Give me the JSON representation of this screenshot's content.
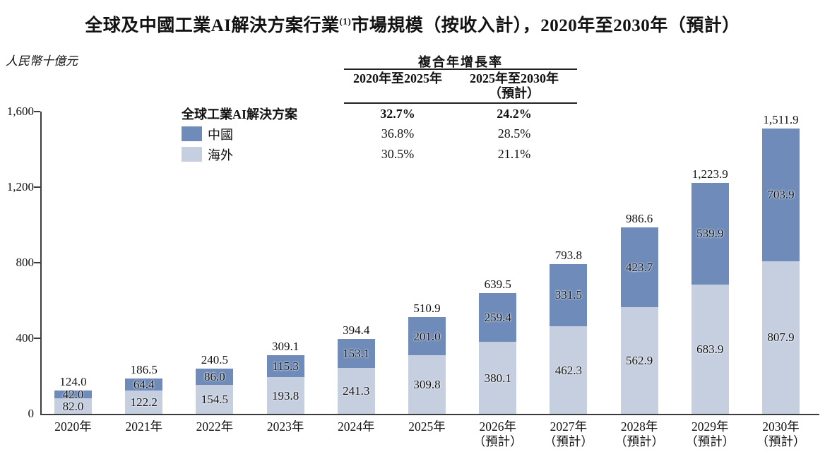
{
  "title": {
    "before_sup": "全球及中國工業AI解決方案行業",
    "sup": "(1)",
    "after_sup": "市場規模（按收入計），2020年至2030年（預計）"
  },
  "legend": {
    "heading": "全球工業AI解決方案",
    "items": [
      {
        "id": "china",
        "label": "中國",
        "color": "#6e8bb9"
      },
      {
        "id": "overseas",
        "label": "海外",
        "color": "#c5cfe0"
      }
    ]
  },
  "cagr_table": {
    "title": "複合年增長率",
    "col1_header": "2020年至2025年",
    "col2_header_line1": "2025年至2030年",
    "col2_header_line2": "（預計）",
    "rows": [
      {
        "values": [
          "32.7%",
          "24.2%"
        ],
        "bold": true
      },
      {
        "values": [
          "36.8%",
          "28.5%"
        ],
        "bold": false
      },
      {
        "values": [
          "30.5%",
          "21.1%"
        ],
        "bold": false
      }
    ]
  },
  "chart_data": {
    "type": "bar",
    "stacked": true,
    "title": "全球及中國工業AI解決方案行業(1)市場規模（按收入計），2020年至2030年（預計）",
    "ylabel": "人民幣十億元",
    "xlabel": "",
    "ylim": [
      0,
      1600
    ],
    "yticks": [
      0,
      400,
      800,
      1200,
      1600
    ],
    "ytick_labels": [
      "0",
      "400",
      "800",
      "1,200",
      "1,600"
    ],
    "grid": false,
    "legend_position": "top-left",
    "categories": [
      "2020年",
      "2021年",
      "2022年",
      "2023年",
      "2024年",
      "2025年",
      "2026年",
      "2027年",
      "2028年",
      "2029年",
      "2030年"
    ],
    "forecast_suffix": "（預計）",
    "forecast_from_index": 6,
    "series": [
      {
        "name": "中國",
        "color": "#6e8bb9",
        "values": [
          42.0,
          64.4,
          86.0,
          115.3,
          153.1,
          201.0,
          259.4,
          331.5,
          423.7,
          539.9,
          703.9
        ]
      },
      {
        "name": "海外",
        "color": "#c5cfe0",
        "values": [
          82.0,
          122.2,
          154.5,
          193.8,
          241.3,
          309.8,
          380.1,
          462.3,
          562.9,
          683.9,
          807.9
        ]
      }
    ],
    "totals": [
      "124.0",
      "186.5",
      "240.5",
      "309.1",
      "394.4",
      "510.9",
      "639.5",
      "793.8",
      "986.6",
      "1,223.9",
      "1,511.9"
    ]
  }
}
